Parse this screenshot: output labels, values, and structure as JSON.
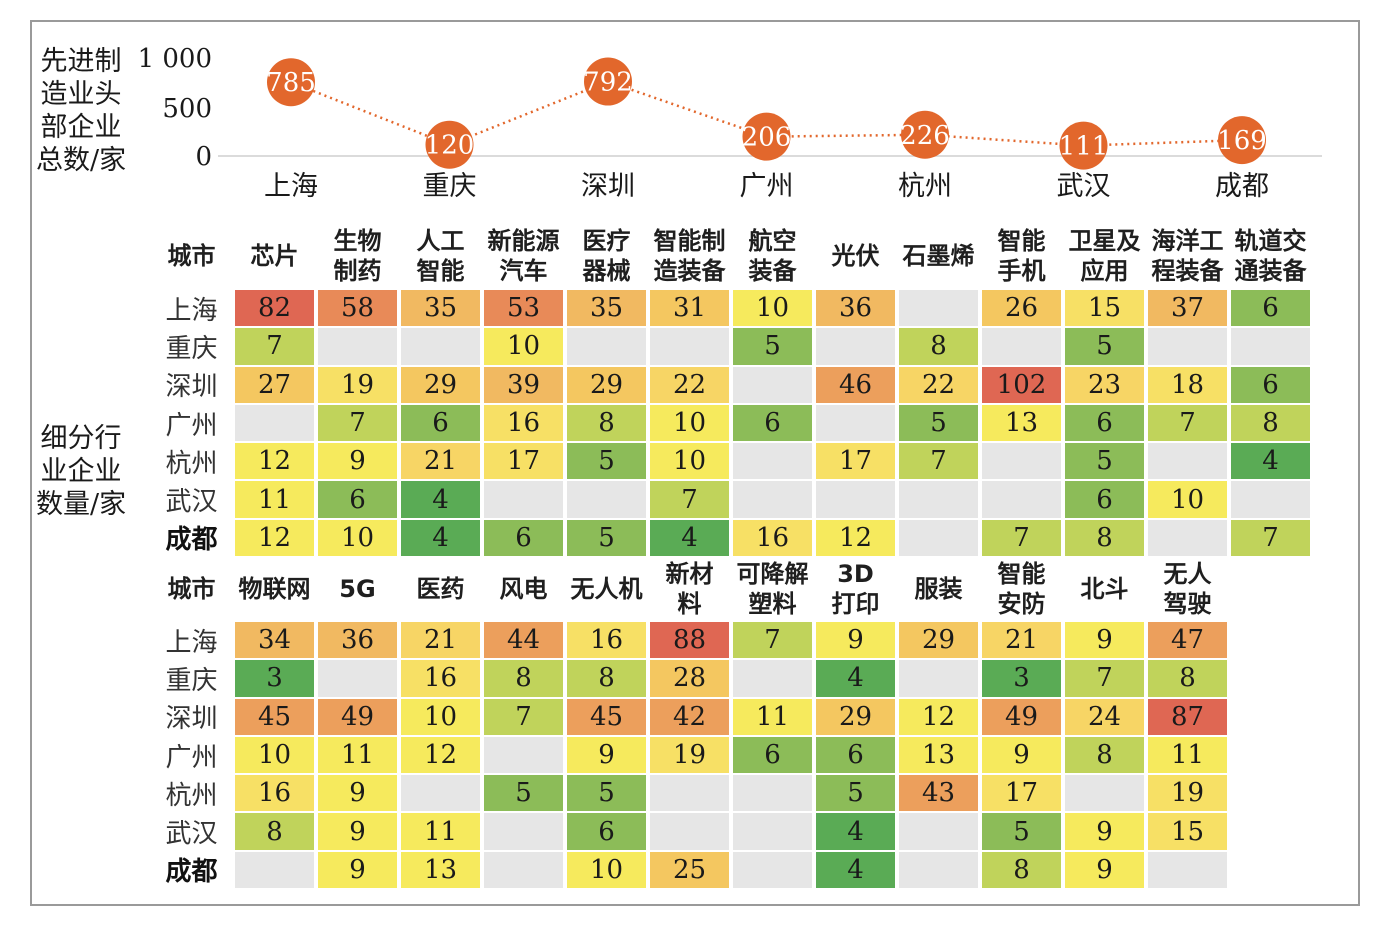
{
  "line_chart": {
    "ylabel": "先进制\n造业头\n部企业\n总数/家",
    "yticks": [
      "1 000",
      "500",
      "0"
    ],
    "ymax": 1000,
    "cities": [
      "上海",
      "重庆",
      "深圳",
      "广州",
      "杭州",
      "武汉",
      "成都"
    ],
    "values": [
      785,
      120,
      792,
      206,
      226,
      111,
      169
    ],
    "colors": {
      "marker": "#e2672c",
      "line": "#e2672c"
    }
  },
  "heatmap1": {
    "side_label": "细分行\n业企业\n数量/家",
    "corner": "城市",
    "headers": [
      "芯片",
      "生物\n制药",
      "人工\n智能",
      "新能源\n汽车",
      "医疗\n器械",
      "智能制\n造装备",
      "航空\n装备",
      "光伏",
      "石墨烯",
      "智能\n手机",
      "卫星及\n应用",
      "海洋工\n程装备",
      "轨道交\n通装备"
    ],
    "rows": [
      {
        "city": "上海",
        "values": [
          82,
          58,
          35,
          53,
          35,
          31,
          10,
          36,
          null,
          26,
          15,
          37,
          6
        ]
      },
      {
        "city": "重庆",
        "values": [
          7,
          null,
          null,
          10,
          null,
          null,
          5,
          null,
          8,
          null,
          5,
          null,
          null
        ]
      },
      {
        "city": "深圳",
        "values": [
          27,
          19,
          29,
          39,
          29,
          22,
          null,
          46,
          22,
          102,
          23,
          18,
          6
        ]
      },
      {
        "city": "广州",
        "values": [
          null,
          7,
          6,
          16,
          8,
          10,
          6,
          null,
          5,
          13,
          6,
          7,
          8
        ]
      },
      {
        "city": "杭州",
        "values": [
          12,
          9,
          21,
          17,
          5,
          10,
          null,
          17,
          7,
          null,
          5,
          null,
          4
        ]
      },
      {
        "city": "武汉",
        "values": [
          11,
          6,
          4,
          null,
          null,
          7,
          null,
          null,
          null,
          null,
          6,
          10,
          null
        ]
      },
      {
        "city": "成都",
        "values": [
          12,
          10,
          4,
          6,
          5,
          4,
          16,
          12,
          null,
          7,
          8,
          null,
          7
        ]
      }
    ]
  },
  "heatmap2": {
    "corner": "城市",
    "headers": [
      "物联网",
      "5G",
      "医药",
      "风电",
      "无人机",
      "新材\n料",
      "可降解\n塑料",
      "3D\n打印",
      "服装",
      "智能\n安防",
      "北斗",
      "无人\n驾驶"
    ],
    "rows": [
      {
        "city": "上海",
        "values": [
          34,
          36,
          21,
          44,
          16,
          88,
          7,
          9,
          29,
          21,
          9,
          47
        ]
      },
      {
        "city": "重庆",
        "values": [
          3,
          null,
          16,
          8,
          8,
          28,
          null,
          4,
          null,
          3,
          7,
          8
        ]
      },
      {
        "city": "深圳",
        "values": [
          45,
          49,
          10,
          7,
          45,
          42,
          11,
          29,
          12,
          49,
          24,
          87
        ]
      },
      {
        "city": "广州",
        "values": [
          10,
          11,
          12,
          null,
          9,
          19,
          6,
          6,
          13,
          9,
          8,
          11
        ]
      },
      {
        "city": "杭州",
        "values": [
          16,
          9,
          null,
          5,
          5,
          null,
          null,
          5,
          43,
          17,
          null,
          19
        ]
      },
      {
        "city": "武汉",
        "values": [
          8,
          9,
          11,
          null,
          6,
          null,
          null,
          4,
          null,
          5,
          9,
          15
        ]
      },
      {
        "city": "成都",
        "values": [
          null,
          9,
          13,
          null,
          10,
          25,
          null,
          4,
          null,
          8,
          9,
          null
        ]
      }
    ]
  },
  "chart_data": [
    {
      "type": "line",
      "title": "",
      "ylabel": "先进制造业头部企业总数/家",
      "x": [
        "上海",
        "重庆",
        "深圳",
        "广州",
        "杭州",
        "武汉",
        "成都"
      ],
      "series": [
        {
          "values": [
            785,
            120,
            792,
            206,
            226,
            111,
            169
          ]
        }
      ],
      "ylim": [
        0,
        1000
      ],
      "grid": false
    },
    {
      "type": "heatmap",
      "ylabel": "细分行业企业数量/家",
      "categories": [
        "芯片",
        "生物制药",
        "人工智能",
        "新能源汽车",
        "医疗器械",
        "智能制造装备",
        "航空装备",
        "光伏",
        "石墨烯",
        "智能手机",
        "卫星及应用",
        "海洋工程装备",
        "轨道交通装备",
        "物联网",
        "5G",
        "医药",
        "风电",
        "无人机",
        "新材料",
        "可降解塑料",
        "3D打印",
        "服装",
        "智能安防",
        "北斗",
        "无人驾驶"
      ],
      "rows": [
        "上海",
        "重庆",
        "深圳",
        "广州",
        "杭州",
        "武汉",
        "成都"
      ],
      "color_scale": [
        "#5aab55",
        "#a4c85a",
        "#f7e95c",
        "#f3c15e",
        "#eb9a5c",
        "#df6753"
      ]
    }
  ]
}
